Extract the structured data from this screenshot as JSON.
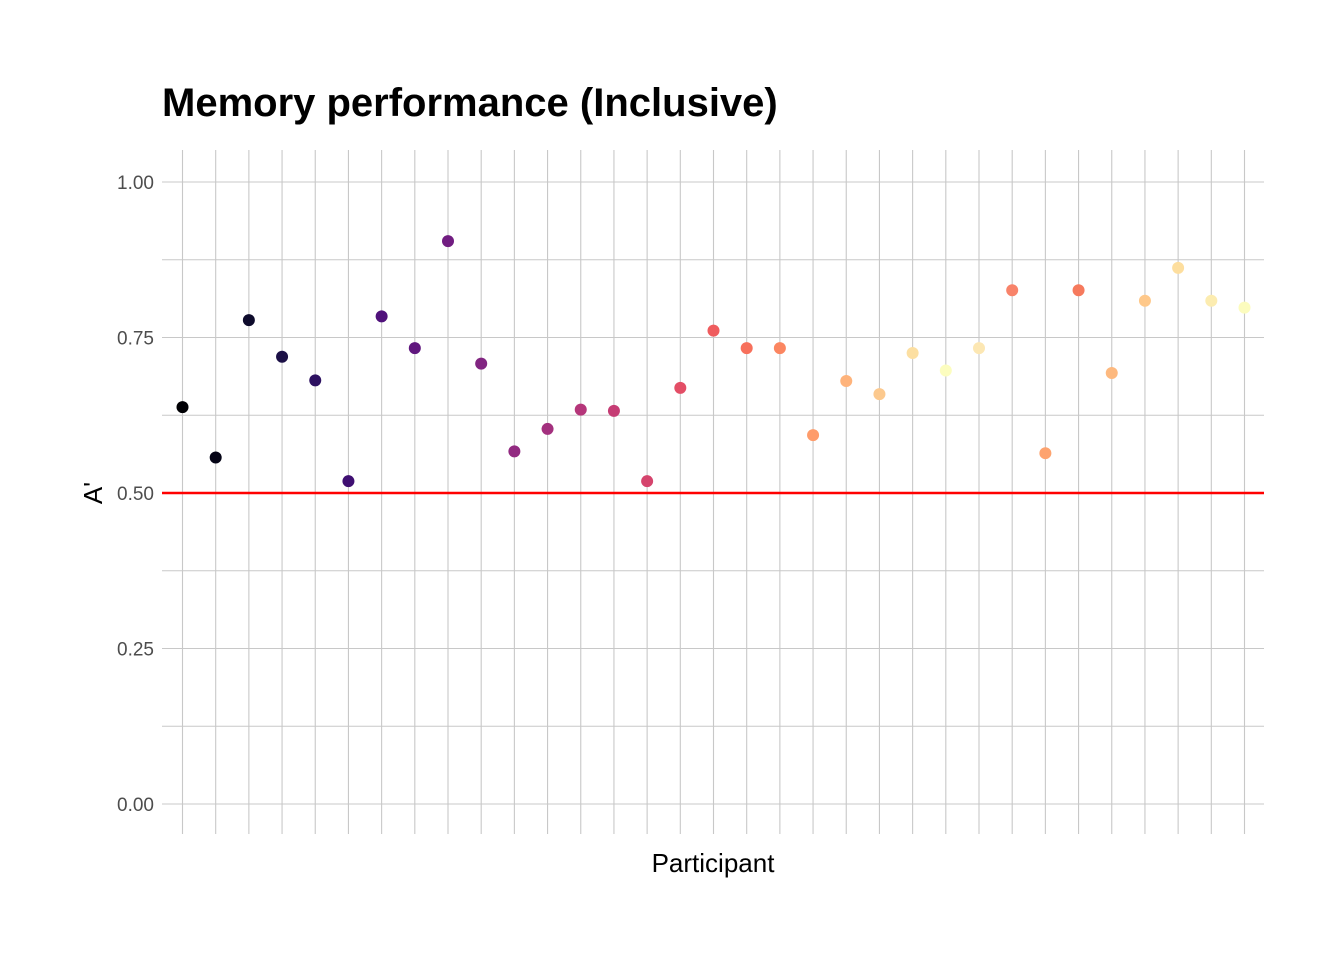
{
  "chart_data": {
    "type": "scatter",
    "title": "Memory performance (Inclusive)",
    "xlabel": "Participant",
    "ylabel": "A'",
    "ylim": [
      -0.035,
      1.05
    ],
    "yticks": [
      0.0,
      0.25,
      0.5,
      0.75,
      1.0
    ],
    "ytick_labels": [
      "0.00",
      "0.25",
      "0.50",
      "0.75",
      "1.00"
    ],
    "x_tick_labels_shown": false,
    "grid": true,
    "reference_line": {
      "y": 0.5,
      "color": "#ff0000"
    },
    "n_participants": 33,
    "values": [
      0.638,
      0.557,
      0.778,
      0.719,
      0.681,
      0.519,
      0.784,
      0.733,
      0.905,
      0.708,
      0.567,
      0.603,
      0.634,
      0.632,
      0.519,
      0.669,
      0.761,
      0.733,
      0.733,
      0.593,
      0.68,
      0.659,
      0.725,
      0.697,
      0.733,
      0.826,
      0.564,
      0.826,
      0.693,
      0.809,
      0.862,
      0.809,
      0.798
    ],
    "colors": [
      "#000004",
      "#050416",
      "#0e0b2c",
      "#1c1046",
      "#2d1161",
      "#3f0f72",
      "#50127b",
      "#60177e",
      "#711d81",
      "#812581",
      "#922a81",
      "#a3307e",
      "#b5367a",
      "#c53c74",
      "#d5446d",
      "#e34e66",
      "#ef5c5e",
      "#f7705c",
      "#fb8661",
      "#fe9c6b",
      "#feb37b",
      "#fcc98e",
      "#fcdfa2",
      "#fcfdbf",
      "#fce7b3",
      "#f8836a",
      "#fda36f",
      "#f67a5d",
      "#fdb97f",
      "#fec88a",
      "#fdde9e",
      "#fcecb0",
      "#fcfcbe"
    ]
  }
}
